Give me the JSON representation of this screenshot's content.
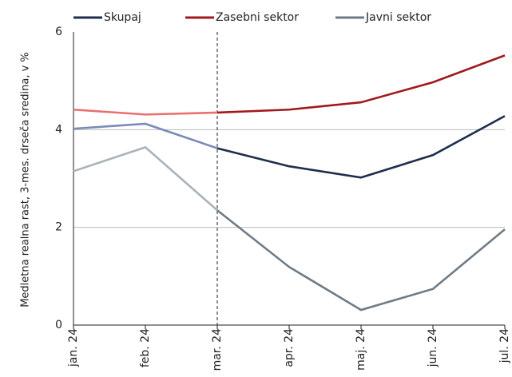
{
  "chart_data": {
    "type": "line",
    "y_label": "Medletna realna rast, 3-mes. drseča sredina, v %",
    "categories": [
      "jan. 24",
      "feb. 24",
      "mar. 24",
      "apr. 24",
      "maj. 24",
      "jun. 24",
      "jul. 24"
    ],
    "series": [
      {
        "name": "Skupaj",
        "color": "#1f2d4d",
        "faded_color": "#7a8bb8",
        "values": [
          4.02,
          4.12,
          3.62,
          3.25,
          3.02,
          3.48,
          4.28
        ]
      },
      {
        "name": "Zasebni sektor",
        "color": "#a0191e",
        "faded_color": "#ea6f6f",
        "values": [
          4.41,
          4.31,
          4.35,
          4.41,
          4.56,
          4.97,
          5.52
        ]
      },
      {
        "name": "Javni sektor",
        "color": "#6e7b85",
        "faded_color": "#aab3ba",
        "values": [
          3.15,
          3.64,
          2.35,
          1.19,
          0.31,
          0.74,
          1.96
        ]
      }
    ],
    "highlight_from_index": 2,
    "ylim": [
      0,
      6
    ],
    "yticks": [
      0,
      2,
      4,
      6
    ],
    "grid": true,
    "legend": "top"
  }
}
